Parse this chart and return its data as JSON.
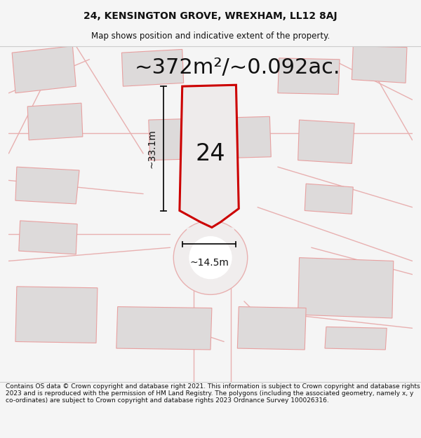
{
  "title_line1": "24, KENSINGTON GROVE, WREXHAM, LL12 8AJ",
  "title_line2": "Map shows position and indicative extent of the property.",
  "area_label": "~372m²/~0.092ac.",
  "plot_number": "24",
  "dim_vertical": "~33.1m",
  "dim_horizontal": "~14.5m",
  "footer_text": "Contains OS data © Crown copyright and database right 2021. This information is subject to Crown copyright and database rights 2023 and is reproduced with the permission of HM Land Registry. The polygons (including the associated geometry, namely x, y co-ordinates) are subject to Crown copyright and database rights 2023 Ordnance Survey 100026316.",
  "bg_color": "#f5f5f5",
  "map_bg_color": "#ffffff",
  "plot_fill": "#eeebeb",
  "plot_outline": "#cc0000",
  "neighbor_fill": "#dddada",
  "neighbor_outline": "#e8a0a0",
  "road_line_color": "#e8b0b0",
  "dim_line_color": "#111111",
  "text_color": "#111111",
  "title_fontsize": 10,
  "subtitle_fontsize": 8.5,
  "area_fontsize": 22,
  "plot_num_fontsize": 24,
  "dim_fontsize": 10,
  "footer_fontsize": 6.5
}
